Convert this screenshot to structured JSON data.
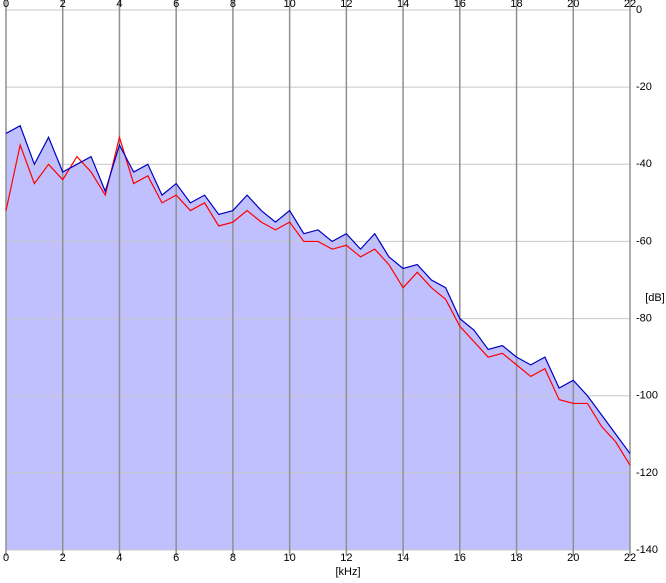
{
  "chart_data": {
    "type": "line",
    "x_label": "[kHz]",
    "y_label": "[dB]",
    "x": [
      0,
      0.5,
      1,
      1.5,
      2,
      2.5,
      3,
      3.5,
      4,
      4.5,
      5,
      5.5,
      6,
      6.5,
      7,
      7.5,
      8,
      8.5,
      9,
      9.5,
      10,
      10.5,
      11,
      11.5,
      12,
      12.5,
      13,
      13.5,
      14,
      14.5,
      15,
      15.5,
      16,
      16.5,
      17,
      17.5,
      18,
      18.5,
      19,
      19.5,
      20,
      20.5,
      21,
      21.5,
      22
    ],
    "series": [
      {
        "color": "#ff0000",
        "values": [
          -52,
          -35,
          -45,
          -40,
          -44,
          -38,
          -42,
          -48,
          -33,
          -45,
          -43,
          -50,
          -48,
          -52,
          -50,
          -56,
          -55,
          -52,
          -55,
          -57,
          -55,
          -60,
          -60,
          -62,
          -61,
          -64,
          -62,
          -66,
          -72,
          -68,
          -72,
          -75,
          -82,
          -86,
          -90,
          -89,
          -92,
          -95,
          -93,
          -101,
          -102,
          -102,
          -108,
          -112,
          -118
        ]
      },
      {
        "color": "#0000c0",
        "values": [
          -32,
          -30,
          -40,
          -33,
          -42,
          -40,
          -38,
          -47,
          -35,
          -42,
          -40,
          -48,
          -45,
          -50,
          -48,
          -53,
          -52,
          -48,
          -52,
          -55,
          -52,
          -58,
          -57,
          -60,
          -58,
          -62,
          -58,
          -64,
          -67,
          -66,
          -70,
          -72,
          -80,
          -83,
          -88,
          -87,
          -90,
          -92,
          -90,
          -98,
          -96,
          -100,
          -105,
          -110,
          -115
        ]
      }
    ],
    "fill_color": "#c0c0ff",
    "xlim": [
      0,
      22
    ],
    "xticks": [
      0,
      2,
      4,
      6,
      8,
      10,
      12,
      14,
      16,
      18,
      20,
      22
    ],
    "ylim": [
      -140,
      0
    ],
    "yticks": [
      0,
      -20,
      -40,
      -60,
      -80,
      -100,
      -120,
      -140
    ],
    "grid": true
  }
}
